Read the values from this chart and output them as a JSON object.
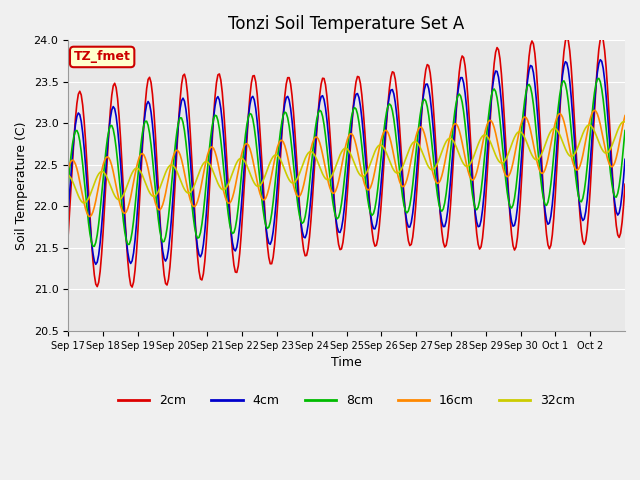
{
  "title": "Tonzi Soil Temperature Set A",
  "xlabel": "Time",
  "ylabel": "Soil Temperature (C)",
  "ylim": [
    20.5,
    24.0
  ],
  "annotation_text": "TZ_fmet",
  "annotation_bg": "#ffffcc",
  "annotation_border": "#cc0000",
  "series_labels": [
    "2cm",
    "4cm",
    "8cm",
    "16cm",
    "32cm"
  ],
  "series_colors": [
    "#dd0000",
    "#0000cc",
    "#00bb00",
    "#ff8800",
    "#cccc00"
  ],
  "xtick_labels": [
    "Sep 17",
    "Sep 18",
    "Sep 19",
    "Sep 20",
    "Sep 21",
    "Sep 22",
    "Sep 23",
    "Sep 24",
    "Sep 25",
    "Sep 26",
    "Sep 27",
    "Sep 28",
    "Sep 29",
    "Sep 30",
    "Oct 1",
    "Oct 2"
  ],
  "ytick_vals": [
    20.5,
    21.0,
    21.5,
    22.0,
    22.5,
    23.0,
    23.5,
    24.0
  ]
}
